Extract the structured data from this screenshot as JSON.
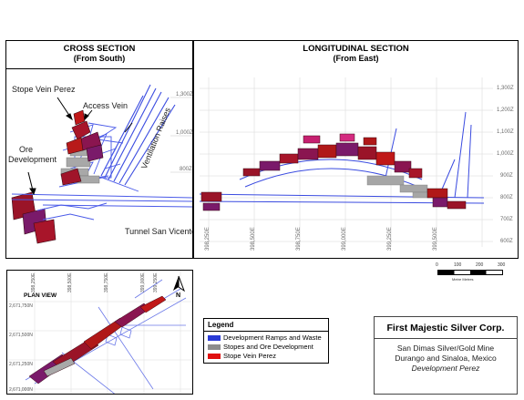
{
  "cross_section": {
    "title": "CROSS SECTION",
    "subtitle": "(From South)",
    "labels": {
      "stope_vein": "Stope Vein Perez",
      "access_vein": "Access Vein",
      "ore_dev_1": "Ore",
      "ore_dev_2": "Development",
      "ventilation": "Ventilation Raises",
      "tunnel": "Tunnel San Vicente"
    },
    "elevations": [
      "1,300Z",
      "1,000Z",
      "800Z"
    ]
  },
  "longitudinal_section": {
    "title": "LONGITUDINAL SECTION",
    "subtitle": "(From East)",
    "elevations": [
      "1,300Z",
      "1,200Z",
      "1,100Z",
      "1,000Z",
      "900Z",
      "800Z",
      "700Z",
      "600Z"
    ],
    "eastings": [
      "398,250E",
      "398,500E",
      "398,750E",
      "399,000E",
      "399,250E",
      "399,500E"
    ]
  },
  "scale_bar": {
    "ticks": [
      "0",
      "100",
      "200",
      "300"
    ],
    "unit": "Metre Metres"
  },
  "plan_view": {
    "title": "PLAN VIEW",
    "north": "N",
    "eastings": [
      "398,250E",
      "398,500E",
      "398,750E",
      "399,000E",
      "399,250E"
    ],
    "northings": [
      "2,671,750N",
      "2,671,500N",
      "2,671,250N",
      "2,671,000N"
    ]
  },
  "legend": {
    "title": "Legend",
    "items": [
      {
        "label": "Development Ramps and Waste",
        "color": "#2a3bd6"
      },
      {
        "label": "Stopes and Ore Development",
        "color": "#8c8c8c"
      },
      {
        "label": "Stope Vein Perez",
        "color": "#e01010"
      }
    ]
  },
  "company": {
    "name": "First Majestic Silver Corp.",
    "line1": "San Dimas Silver/Gold Mine",
    "line2": "Durango and Sinaloa, Mexico",
    "line3_italic": "Development",
    "line3_rest": " Perez"
  }
}
